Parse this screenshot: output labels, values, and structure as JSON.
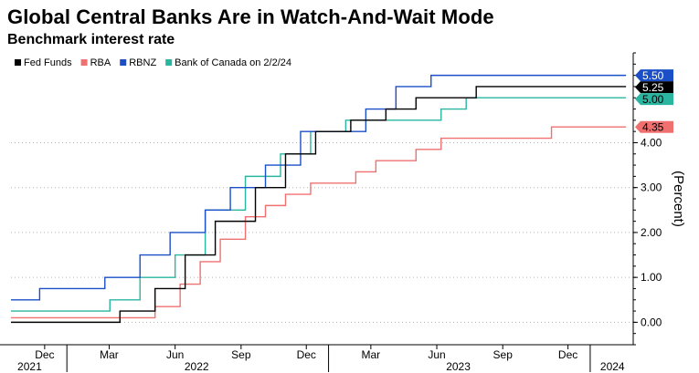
{
  "header": {
    "title": "Global Central Banks Are in Watch-And-Wait Mode",
    "subtitle": "Benchmark interest rate"
  },
  "chart_data": {
    "type": "line",
    "step": true,
    "title": "Global Central Banks Are in Watch-And-Wait Mode",
    "subtitle": "Benchmark interest rate",
    "ylabel": "(Percent)",
    "ylim": [
      -0.5,
      6.0
    ],
    "xlim": [
      "2021-10-15",
      "2024-03-01"
    ],
    "grid": "horizontal dotted",
    "legend_position": "top-left",
    "y_ticks": [
      {
        "value": 0,
        "label": "0.00"
      },
      {
        "value": 1,
        "label": "1.00"
      },
      {
        "value": 2,
        "label": "2.00"
      },
      {
        "value": 3,
        "label": "3.00"
      },
      {
        "value": 4,
        "label": "4.00"
      }
    ],
    "x_ticks": [
      {
        "date": "2021-12-01",
        "label": "Dec"
      },
      {
        "date": "2022-03-01",
        "label": "Mar"
      },
      {
        "date": "2022-06-01",
        "label": "Jun"
      },
      {
        "date": "2022-09-01",
        "label": "Sep"
      },
      {
        "date": "2022-12-01",
        "label": "Dec"
      },
      {
        "date": "2023-03-01",
        "label": "Mar"
      },
      {
        "date": "2023-06-01",
        "label": "Jun"
      },
      {
        "date": "2023-09-01",
        "label": "Sep"
      },
      {
        "date": "2023-12-01",
        "label": "Dec"
      }
    ],
    "year_labels": [
      {
        "date": "2021-11-10",
        "label": "2021"
      },
      {
        "date": "2022-07-01",
        "label": "2022"
      },
      {
        "date": "2023-07-01",
        "label": "2023"
      },
      {
        "date": "2024-02-01",
        "label": "2024"
      }
    ],
    "series": [
      {
        "name": "Fed Funds",
        "color": "#000000",
        "end_label": "5.25",
        "points": [
          [
            "2021-10-15",
            0.0
          ],
          [
            "2022-03-16",
            0.25
          ],
          [
            "2022-05-04",
            0.75
          ],
          [
            "2022-06-15",
            1.5
          ],
          [
            "2022-07-27",
            2.25
          ],
          [
            "2022-09-21",
            3.0
          ],
          [
            "2022-11-02",
            3.75
          ],
          [
            "2022-12-14",
            4.25
          ],
          [
            "2023-02-01",
            4.5
          ],
          [
            "2023-03-22",
            4.75
          ],
          [
            "2023-05-03",
            5.0
          ],
          [
            "2023-07-26",
            5.25
          ],
          [
            "2024-02-20",
            5.25
          ]
        ]
      },
      {
        "name": "RBA",
        "color": "#f07070",
        "end_label": "4.35",
        "points": [
          [
            "2021-10-15",
            0.1
          ],
          [
            "2022-05-04",
            0.35
          ],
          [
            "2022-06-08",
            0.85
          ],
          [
            "2022-07-06",
            1.35
          ],
          [
            "2022-08-03",
            1.85
          ],
          [
            "2022-09-07",
            2.35
          ],
          [
            "2022-10-05",
            2.6
          ],
          [
            "2022-11-02",
            2.85
          ],
          [
            "2022-12-07",
            3.1
          ],
          [
            "2023-02-08",
            3.35
          ],
          [
            "2023-03-08",
            3.6
          ],
          [
            "2023-05-03",
            3.85
          ],
          [
            "2023-06-07",
            4.1
          ],
          [
            "2023-11-08",
            4.35
          ],
          [
            "2024-02-20",
            4.35
          ]
        ]
      },
      {
        "name": "RBNZ",
        "color": "#1a4fc8",
        "end_label": "5.50",
        "points": [
          [
            "2021-10-15",
            0.5
          ],
          [
            "2021-11-24",
            0.75
          ],
          [
            "2022-02-23",
            1.0
          ],
          [
            "2022-04-13",
            1.5
          ],
          [
            "2022-05-25",
            2.0
          ],
          [
            "2022-07-13",
            2.5
          ],
          [
            "2022-08-17",
            3.0
          ],
          [
            "2022-10-05",
            3.5
          ],
          [
            "2022-11-23",
            4.25
          ],
          [
            "2023-02-22",
            4.75
          ],
          [
            "2023-04-05",
            5.25
          ],
          [
            "2023-05-24",
            5.5
          ],
          [
            "2024-02-20",
            5.5
          ]
        ]
      },
      {
        "name": "Bank of Canada on 2/2/24",
        "color": "#2ab5a0",
        "end_label": "5.00",
        "points": [
          [
            "2021-10-15",
            0.25
          ],
          [
            "2022-03-02",
            0.5
          ],
          [
            "2022-04-13",
            1.0
          ],
          [
            "2022-06-01",
            1.5
          ],
          [
            "2022-07-13",
            2.5
          ],
          [
            "2022-09-07",
            3.25
          ],
          [
            "2022-10-26",
            3.75
          ],
          [
            "2022-12-07",
            4.25
          ],
          [
            "2023-01-25",
            4.5
          ],
          [
            "2023-06-07",
            4.75
          ],
          [
            "2023-07-12",
            5.0
          ],
          [
            "2024-02-20",
            5.0
          ]
        ]
      }
    ]
  }
}
